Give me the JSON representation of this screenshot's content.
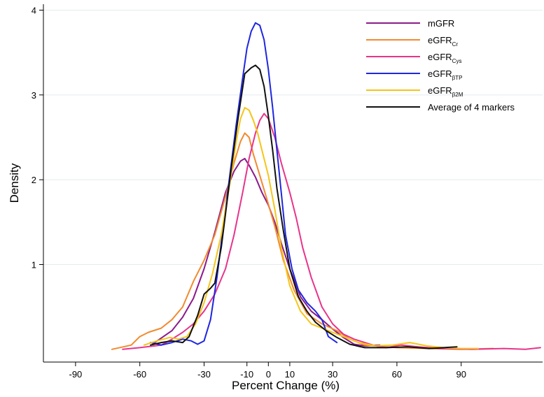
{
  "chart_data": {
    "type": "line",
    "title": "",
    "xlabel": "Percent Change (%)",
    "ylabel": "Density",
    "xlim": [
      -105,
      128
    ],
    "ylim": [
      -0.15,
      4.07
    ],
    "x_ticks": [
      -90,
      -60,
      -30,
      -10,
      0,
      10,
      30,
      60,
      90
    ],
    "y_ticks": [
      1,
      2,
      3,
      4
    ],
    "grid": "horizontal",
    "legend_position": "top-right",
    "series": [
      {
        "name": "mGFR",
        "label_main": "mGFR",
        "label_sub": "",
        "color": "#8b1a8b",
        "points": [
          [
            -53,
            0.08
          ],
          [
            -45,
            0.22
          ],
          [
            -40,
            0.38
          ],
          [
            -35,
            0.6
          ],
          [
            -30,
            0.95
          ],
          [
            -25,
            1.38
          ],
          [
            -20,
            1.85
          ],
          [
            -16,
            2.1
          ],
          [
            -13,
            2.22
          ],
          [
            -11,
            2.25
          ],
          [
            -9,
            2.17
          ],
          [
            -6,
            2.03
          ],
          [
            -3,
            1.85
          ],
          [
            0,
            1.7
          ],
          [
            3,
            1.5
          ],
          [
            6,
            1.25
          ],
          [
            10,
            0.95
          ],
          [
            15,
            0.62
          ],
          [
            20,
            0.45
          ],
          [
            25,
            0.35
          ],
          [
            30,
            0.24
          ],
          [
            35,
            0.14
          ],
          [
            40,
            0.06
          ],
          [
            45,
            0.04
          ],
          [
            52,
            0.05
          ]
        ]
      },
      {
        "name": "eGFRCr",
        "label_main": "eGFR",
        "label_sub": "Cr",
        "color": "#f28a2e",
        "points": [
          [
            -73,
            0.0
          ],
          [
            -64,
            0.05
          ],
          [
            -60,
            0.15
          ],
          [
            -56,
            0.2
          ],
          [
            -50,
            0.25
          ],
          [
            -45,
            0.35
          ],
          [
            -40,
            0.5
          ],
          [
            -35,
            0.8
          ],
          [
            -30,
            1.05
          ],
          [
            -25,
            1.35
          ],
          [
            -20,
            1.8
          ],
          [
            -16,
            2.2
          ],
          [
            -13,
            2.45
          ],
          [
            -11,
            2.55
          ],
          [
            -9,
            2.5
          ],
          [
            -7,
            2.3
          ],
          [
            -4,
            2.05
          ],
          [
            -1,
            1.8
          ],
          [
            3,
            1.45
          ],
          [
            7,
            1.05
          ],
          [
            12,
            0.7
          ],
          [
            18,
            0.42
          ],
          [
            25,
            0.3
          ],
          [
            32,
            0.22
          ],
          [
            38,
            0.12
          ],
          [
            45,
            0.05
          ],
          [
            60,
            0.02
          ],
          [
            75,
            0.01
          ],
          [
            90,
            0.0
          ],
          [
            105,
            0.01
          ]
        ]
      },
      {
        "name": "eGFRCys",
        "label_main": "eGFR",
        "label_sub": "Cys",
        "color": "#e8348a",
        "points": [
          [
            -68,
            0.0
          ],
          [
            -60,
            0.02
          ],
          [
            -50,
            0.05
          ],
          [
            -45,
            0.12
          ],
          [
            -40,
            0.2
          ],
          [
            -35,
            0.3
          ],
          [
            -30,
            0.45
          ],
          [
            -25,
            0.65
          ],
          [
            -20,
            0.95
          ],
          [
            -16,
            1.35
          ],
          [
            -12,
            1.85
          ],
          [
            -9,
            2.25
          ],
          [
            -6,
            2.55
          ],
          [
            -4,
            2.7
          ],
          [
            -2,
            2.78
          ],
          [
            0,
            2.72
          ],
          [
            3,
            2.5
          ],
          [
            6,
            2.2
          ],
          [
            10,
            1.85
          ],
          [
            13,
            1.55
          ],
          [
            16,
            1.2
          ],
          [
            20,
            0.85
          ],
          [
            25,
            0.5
          ],
          [
            30,
            0.3
          ],
          [
            35,
            0.18
          ],
          [
            40,
            0.12
          ],
          [
            45,
            0.08
          ],
          [
            50,
            0.04
          ],
          [
            55,
            0.02
          ],
          [
            62,
            0.05
          ],
          [
            70,
            0.03
          ],
          [
            80,
            0.01
          ],
          [
            95,
            0.0
          ],
          [
            110,
            0.01
          ],
          [
            120,
            0.0
          ],
          [
            127,
            0.02
          ]
        ]
      },
      {
        "name": "eGFRβTP",
        "label_main": "eGFR",
        "label_sub": "βTP",
        "color": "#1f26e0",
        "points": [
          [
            -55,
            0.08
          ],
          [
            -50,
            0.05
          ],
          [
            -45,
            0.08
          ],
          [
            -40,
            0.12
          ],
          [
            -36,
            0.1
          ],
          [
            -33,
            0.06
          ],
          [
            -30,
            0.1
          ],
          [
            -27,
            0.35
          ],
          [
            -24,
            0.85
          ],
          [
            -21,
            1.45
          ],
          [
            -18,
            2.05
          ],
          [
            -15,
            2.65
          ],
          [
            -12,
            3.2
          ],
          [
            -10,
            3.55
          ],
          [
            -8,
            3.75
          ],
          [
            -6,
            3.85
          ],
          [
            -4,
            3.82
          ],
          [
            -2,
            3.65
          ],
          [
            0,
            3.3
          ],
          [
            2,
            2.85
          ],
          [
            4,
            2.35
          ],
          [
            6,
            1.85
          ],
          [
            8,
            1.35
          ],
          [
            11,
            0.95
          ],
          [
            14,
            0.7
          ],
          [
            18,
            0.55
          ],
          [
            22,
            0.45
          ],
          [
            25,
            0.35
          ],
          [
            28,
            0.15
          ],
          [
            32,
            0.08
          ]
        ]
      },
      {
        "name": "eGFRβ2M",
        "label_main": "eGFR",
        "label_sub": "β2M",
        "color": "#f5c518",
        "points": [
          [
            -58,
            0.05
          ],
          [
            -52,
            0.1
          ],
          [
            -46,
            0.14
          ],
          [
            -42,
            0.12
          ],
          [
            -38,
            0.15
          ],
          [
            -34,
            0.3
          ],
          [
            -30,
            0.55
          ],
          [
            -26,
            0.9
          ],
          [
            -22,
            1.35
          ],
          [
            -18,
            1.95
          ],
          [
            -15,
            2.45
          ],
          [
            -13,
            2.72
          ],
          [
            -11,
            2.85
          ],
          [
            -9,
            2.82
          ],
          [
            -7,
            2.7
          ],
          [
            -5,
            2.55
          ],
          [
            -3,
            2.35
          ],
          [
            0,
            2.05
          ],
          [
            3,
            1.65
          ],
          [
            6,
            1.2
          ],
          [
            10,
            0.75
          ],
          [
            15,
            0.45
          ],
          [
            20,
            0.3
          ],
          [
            28,
            0.22
          ],
          [
            35,
            0.15
          ],
          [
            42,
            0.08
          ],
          [
            50,
            0.04
          ],
          [
            58,
            0.05
          ],
          [
            66,
            0.08
          ],
          [
            74,
            0.04
          ],
          [
            82,
            0.02
          ],
          [
            90,
            0.01
          ],
          [
            98,
            0.01
          ]
        ]
      },
      {
        "name": "Average of 4 markers",
        "label_main": "Average of 4 markers",
        "label_sub": "",
        "color": "#111111",
        "points": [
          [
            -55,
            0.05
          ],
          [
            -50,
            0.08
          ],
          [
            -45,
            0.1
          ],
          [
            -40,
            0.08
          ],
          [
            -37,
            0.15
          ],
          [
            -33,
            0.4
          ],
          [
            -30,
            0.65
          ],
          [
            -27,
            0.72
          ],
          [
            -25,
            0.78
          ],
          [
            -22,
            1.2
          ],
          [
            -20,
            1.6
          ],
          [
            -17,
            2.2
          ],
          [
            -14,
            2.75
          ],
          [
            -11,
            3.25
          ],
          [
            -8,
            3.32
          ],
          [
            -6,
            3.35
          ],
          [
            -4,
            3.3
          ],
          [
            -2,
            3.1
          ],
          [
            0,
            2.75
          ],
          [
            2,
            2.35
          ],
          [
            4,
            1.9
          ],
          [
            7,
            1.4
          ],
          [
            10,
            0.95
          ],
          [
            14,
            0.62
          ],
          [
            18,
            0.45
          ],
          [
            22,
            0.32
          ],
          [
            27,
            0.22
          ],
          [
            32,
            0.14
          ],
          [
            38,
            0.06
          ],
          [
            45,
            0.02
          ],
          [
            55,
            0.02
          ],
          [
            65,
            0.03
          ],
          [
            75,
            0.01
          ],
          [
            88,
            0.03
          ]
        ]
      }
    ]
  }
}
